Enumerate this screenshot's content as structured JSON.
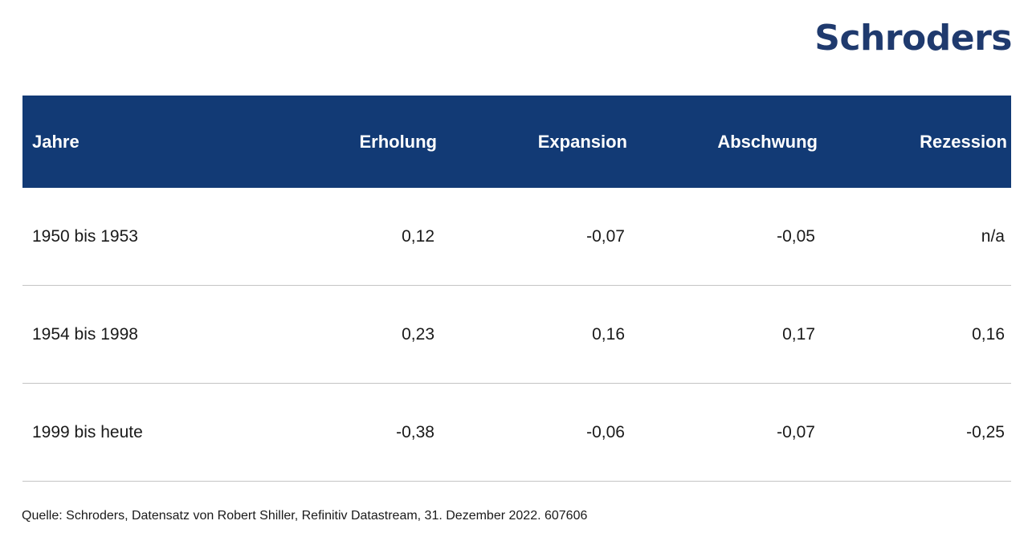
{
  "logo": {
    "text": "Schroders",
    "color": "#1f3a6e"
  },
  "colors": {
    "header_bg": "#123a75",
    "header_text": "#ffffff",
    "divider": "#c4c4c4"
  },
  "chart_data": {
    "type": "table",
    "columns": [
      "Jahre",
      "Erholung",
      "Expansion",
      "Abschwung",
      "Rezession"
    ],
    "rows": [
      [
        "1950 bis 1953",
        "0,12",
        "-0,07",
        "-0,05",
        "n/a"
      ],
      [
        "1954 bis 1998",
        "0,23",
        "0,16",
        "0,17",
        "0,16"
      ],
      [
        "1999 bis heute",
        "-0,38",
        "-0,06",
        "-0,07",
        "-0,25"
      ]
    ]
  },
  "source": "Quelle: Schroders, Datensatz von Robert Shiller, Refinitiv Datastream, 31. Dezember 2022. 607606"
}
